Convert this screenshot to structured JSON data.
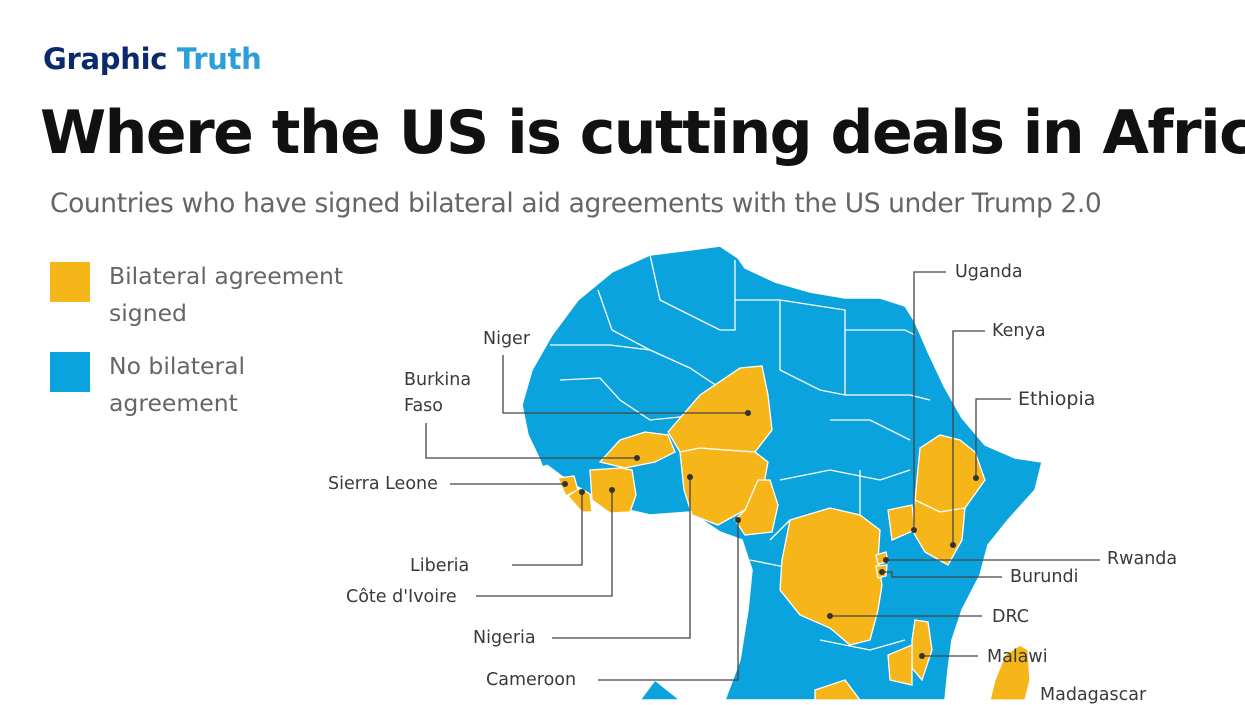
{
  "brand": {
    "part1": "Graphic",
    "part2": "Truth"
  },
  "headline": "Where the US is cutting deals in Africa",
  "subtitle": "Countries who have signed bilateral aid agreements with the US under Trump 2.0",
  "colors": {
    "signed": "#f6b61a",
    "not_signed": "#0aa3dd",
    "border": "#ffffff",
    "leader": "#444444"
  },
  "legend": [
    {
      "label": "Bilateral agreement signed",
      "color": "#f6b61a"
    },
    {
      "label": "No bilateral agreement",
      "color": "#0aa3dd"
    }
  ],
  "countries_signed": {
    "niger": "Niger",
    "burkina": "Burkina Faso",
    "sierra_leone": "Sierra Leone",
    "liberia": "Liberia",
    "cote": "Côte d'Ivoire",
    "nigeria": "Nigeria",
    "cameroon": "Cameroon",
    "uganda": "Uganda",
    "kenya": "Kenya",
    "ethiopia": "Ethiopia",
    "rwanda": "Rwanda",
    "burundi": "Burundi",
    "drc": "DRC",
    "malawi": "Malawi",
    "madagascar": "Madagascar"
  }
}
